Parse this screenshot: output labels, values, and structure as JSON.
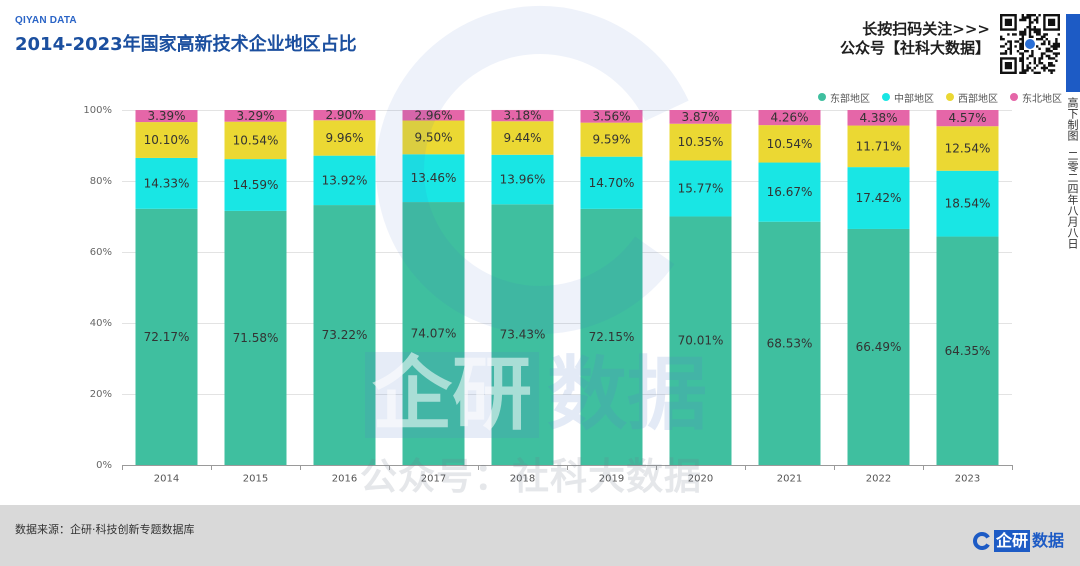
{
  "header": {
    "brand": "QIYAN DATA"
  },
  "follow": {
    "prompt": "长按扫码关注>>>",
    "account": "公众号【社科大数据】",
    "qr_icon": "qr-code-icon"
  },
  "side_note": {
    "author": "高下制图",
    "date": "二零二四年八月八日"
  },
  "watermark": {
    "logo_part1": "企研",
    "logo_part2": "数据",
    "account": "公众号：社科大数据",
    "icon": "c-logo-icon"
  },
  "footer": {
    "source": "数据来源：企研·科技创新专题数据库",
    "logo_part1": "企研",
    "logo_part2": "数据",
    "logo_icon": "c-logo-icon"
  },
  "colors": {
    "accent": "#1d5bc5",
    "title": "#1b4f9f",
    "footer_bg": "#d9d9d9"
  },
  "chart_data": {
    "type": "bar",
    "stacked": true,
    "title": "2014-2023年国家高新技术企业地区占比",
    "categories": [
      "2014",
      "2015",
      "2016",
      "2017",
      "2018",
      "2019",
      "2020",
      "2021",
      "2022",
      "2023"
    ],
    "ylim": [
      0,
      100
    ],
    "ytick_labels": [
      "0%",
      "20%",
      "40%",
      "60%",
      "80%",
      "100%"
    ],
    "grid": true,
    "legend_position": "top-right",
    "series": [
      {
        "name": "东部地区",
        "color": "#3fbf9f",
        "values": [
          72.17,
          71.58,
          73.22,
          74.07,
          73.43,
          72.15,
          70.01,
          68.53,
          66.49,
          64.35
        ]
      },
      {
        "name": "中部地区",
        "color": "#19e6e4",
        "values": [
          14.33,
          14.59,
          13.92,
          13.46,
          13.96,
          14.7,
          15.77,
          16.67,
          17.42,
          18.54
        ]
      },
      {
        "name": "西部地区",
        "color": "#ebd833",
        "values": [
          10.1,
          10.54,
          9.96,
          9.5,
          9.44,
          9.59,
          10.35,
          10.54,
          11.71,
          12.54
        ]
      },
      {
        "name": "东北地区",
        "color": "#e566a8",
        "values": [
          3.39,
          3.29,
          2.9,
          2.96,
          3.18,
          3.56,
          3.87,
          4.26,
          4.38,
          4.57
        ]
      }
    ]
  }
}
